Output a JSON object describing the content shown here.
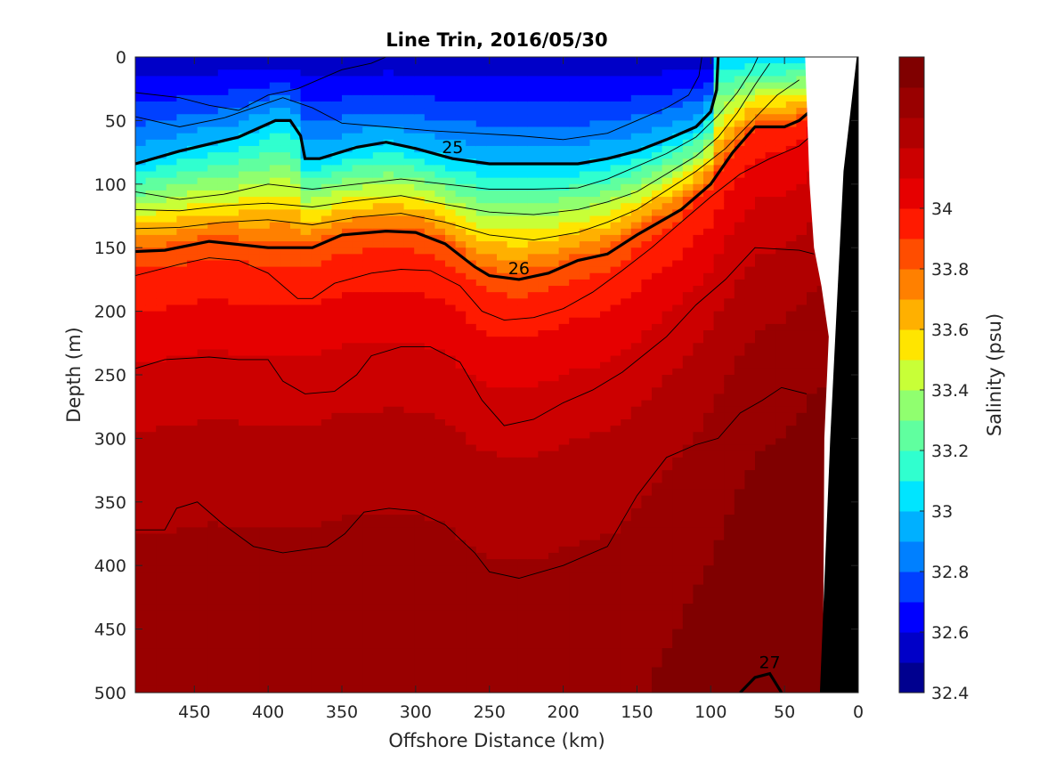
{
  "chart_data": {
    "type": "heatmap",
    "title": "Line Trin, 2016/05/30",
    "xlabel": "Offshore Distance (km)",
    "ylabel": "Depth (m)",
    "xlim": [
      490,
      0
    ],
    "ylim": [
      0,
      500
    ],
    "x_ticks": [
      "450",
      "400",
      "350",
      "300",
      "250",
      "200",
      "150",
      "100",
      "50",
      "0"
    ],
    "y_ticks": [
      "0",
      "50",
      "100",
      "150",
      "200",
      "250",
      "300",
      "350",
      "400",
      "450",
      "500"
    ],
    "colorbar": {
      "label": "Salinity (psu)",
      "range": [
        32.4,
        34.5
      ],
      "ticks": [
        "32.4",
        "32.6",
        "32.8",
        "33",
        "33.2",
        "33.4",
        "33.6",
        "33.8",
        "34"
      ],
      "levels": [
        32.4,
        32.5,
        32.6,
        32.7,
        32.8,
        32.9,
        33.0,
        33.1,
        33.2,
        33.3,
        33.4,
        33.5,
        33.6,
        33.7,
        33.8,
        33.9,
        34.0,
        34.1,
        34.2,
        34.3,
        34.4,
        34.5
      ],
      "colors": [
        "#00008f",
        "#0000c8",
        "#0000ff",
        "#0040ff",
        "#0080ff",
        "#00b0ff",
        "#00e5ff",
        "#30ffcf",
        "#60ff9f",
        "#90ff6f",
        "#c8ff37",
        "#ffe500",
        "#ffb000",
        "#ff8000",
        "#ff4d00",
        "#ff1a00",
        "#e60000",
        "#cc0000",
        "#b00000",
        "#990000",
        "#800000"
      ]
    },
    "sigma_contours": [
      {
        "label": "25",
        "bold": true,
        "points": [
          [
            490,
            84
          ],
          [
            460,
            74
          ],
          [
            420,
            63
          ],
          [
            395,
            50
          ],
          [
            385,
            50
          ],
          [
            378,
            62
          ],
          [
            375,
            80
          ],
          [
            365,
            80
          ],
          [
            340,
            71
          ],
          [
            320,
            67
          ],
          [
            300,
            72
          ],
          [
            275,
            80
          ],
          [
            250,
            84
          ],
          [
            220,
            84
          ],
          [
            190,
            84
          ],
          [
            170,
            80
          ],
          [
            150,
            74
          ],
          [
            130,
            65
          ],
          [
            110,
            55
          ],
          [
            100,
            43
          ],
          [
            96,
            26
          ],
          [
            95,
            0
          ]
        ]
      },
      {
        "label": "26",
        "bold": true,
        "points": [
          [
            490,
            153
          ],
          [
            470,
            152
          ],
          [
            440,
            145
          ],
          [
            400,
            150
          ],
          [
            370,
            150
          ],
          [
            350,
            140
          ],
          [
            320,
            137
          ],
          [
            300,
            138
          ],
          [
            280,
            147
          ],
          [
            260,
            165
          ],
          [
            250,
            172
          ],
          [
            230,
            175
          ],
          [
            210,
            170
          ],
          [
            190,
            160
          ],
          [
            170,
            155
          ],
          [
            150,
            140
          ],
          [
            120,
            120
          ],
          [
            100,
            100
          ],
          [
            85,
            75
          ],
          [
            70,
            55
          ],
          [
            50,
            55
          ],
          [
            40,
            50
          ],
          [
            25,
            35
          ]
        ]
      },
      {
        "label": "27",
        "bold": true,
        "points": [
          [
            80,
            500
          ],
          [
            70,
            488
          ],
          [
            60,
            485
          ],
          [
            52,
            500
          ]
        ]
      },
      {
        "label": "",
        "bold": false,
        "points": [
          [
            490,
            28
          ],
          [
            460,
            32
          ],
          [
            440,
            38
          ],
          [
            420,
            42
          ],
          [
            400,
            30
          ],
          [
            380,
            25
          ],
          [
            350,
            10
          ],
          [
            330,
            5
          ],
          [
            320,
            0
          ]
        ]
      },
      {
        "label": "",
        "bold": false,
        "points": [
          [
            490,
            47
          ],
          [
            460,
            55
          ],
          [
            430,
            48
          ],
          [
            410,
            40
          ],
          [
            390,
            32
          ],
          [
            370,
            40
          ],
          [
            350,
            52
          ],
          [
            320,
            55
          ],
          [
            290,
            58
          ],
          [
            260,
            60
          ],
          [
            230,
            62
          ],
          [
            200,
            65
          ],
          [
            170,
            60
          ],
          [
            150,
            50
          ],
          [
            130,
            40
          ],
          [
            115,
            30
          ],
          [
            108,
            15
          ],
          [
            106,
            0
          ]
        ]
      },
      {
        "label": "",
        "bold": false,
        "points": [
          [
            490,
            106
          ],
          [
            460,
            112
          ],
          [
            430,
            108
          ],
          [
            400,
            100
          ],
          [
            370,
            104
          ],
          [
            340,
            100
          ],
          [
            310,
            96
          ],
          [
            280,
            100
          ],
          [
            250,
            104
          ],
          [
            220,
            104
          ],
          [
            190,
            103
          ],
          [
            170,
            96
          ],
          [
            150,
            86
          ],
          [
            130,
            76
          ],
          [
            110,
            63
          ],
          [
            95,
            46
          ],
          [
            82,
            28
          ],
          [
            72,
            10
          ],
          [
            68,
            0
          ]
        ]
      },
      {
        "label": "",
        "bold": false,
        "points": [
          [
            490,
            120
          ],
          [
            460,
            121
          ],
          [
            430,
            117
          ],
          [
            400,
            115
          ],
          [
            370,
            118
          ],
          [
            340,
            113
          ],
          [
            310,
            109
          ],
          [
            280,
            116
          ],
          [
            250,
            122
          ],
          [
            220,
            124
          ],
          [
            190,
            120
          ],
          [
            170,
            114
          ],
          [
            150,
            106
          ],
          [
            130,
            92
          ],
          [
            110,
            78
          ],
          [
            95,
            63
          ],
          [
            82,
            44
          ],
          [
            70,
            22
          ],
          [
            60,
            5
          ]
        ]
      },
      {
        "label": "",
        "bold": false,
        "points": [
          [
            490,
            135
          ],
          [
            460,
            134
          ],
          [
            430,
            130
          ],
          [
            400,
            128
          ],
          [
            370,
            132
          ],
          [
            340,
            126
          ],
          [
            310,
            123
          ],
          [
            280,
            130
          ],
          [
            250,
            140
          ],
          [
            220,
            144
          ],
          [
            190,
            138
          ],
          [
            170,
            130
          ],
          [
            150,
            120
          ],
          [
            130,
            105
          ],
          [
            110,
            90
          ],
          [
            90,
            72
          ],
          [
            70,
            48
          ],
          [
            55,
            30
          ],
          [
            40,
            18
          ]
        ]
      },
      {
        "label": "",
        "bold": false,
        "points": [
          [
            490,
            172
          ],
          [
            460,
            163
          ],
          [
            440,
            158
          ],
          [
            420,
            160
          ],
          [
            400,
            170
          ],
          [
            380,
            190
          ],
          [
            370,
            190
          ],
          [
            355,
            178
          ],
          [
            330,
            170
          ],
          [
            310,
            167
          ],
          [
            290,
            168
          ],
          [
            270,
            180
          ],
          [
            255,
            200
          ],
          [
            240,
            207
          ],
          [
            220,
            205
          ],
          [
            200,
            198
          ],
          [
            180,
            185
          ],
          [
            160,
            168
          ],
          [
            140,
            150
          ],
          [
            120,
            130
          ],
          [
            100,
            110
          ],
          [
            80,
            92
          ],
          [
            60,
            80
          ],
          [
            40,
            70
          ],
          [
            25,
            55
          ]
        ]
      },
      {
        "label": "",
        "bold": false,
        "points": [
          [
            490,
            245
          ],
          [
            470,
            238
          ],
          [
            440,
            236
          ],
          [
            420,
            238
          ],
          [
            400,
            238
          ],
          [
            390,
            255
          ],
          [
            375,
            265
          ],
          [
            355,
            263
          ],
          [
            340,
            250
          ],
          [
            330,
            235
          ],
          [
            310,
            228
          ],
          [
            290,
            228
          ],
          [
            270,
            240
          ],
          [
            255,
            270
          ],
          [
            240,
            290
          ],
          [
            220,
            285
          ],
          [
            200,
            272
          ],
          [
            180,
            262
          ],
          [
            160,
            248
          ],
          [
            130,
            220
          ],
          [
            110,
            195
          ],
          [
            90,
            175
          ],
          [
            70,
            150
          ],
          [
            40,
            152
          ],
          [
            30,
            155
          ]
        ]
      },
      {
        "label": "",
        "bold": false,
        "points": [
          [
            490,
            372
          ],
          [
            470,
            372
          ],
          [
            462,
            355
          ],
          [
            448,
            350
          ],
          [
            430,
            368
          ],
          [
            410,
            385
          ],
          [
            390,
            390
          ],
          [
            360,
            385
          ],
          [
            348,
            375
          ],
          [
            335,
            358
          ],
          [
            318,
            355
          ],
          [
            300,
            357
          ],
          [
            280,
            368
          ],
          [
            260,
            390
          ],
          [
            250,
            405
          ],
          [
            230,
            410
          ],
          [
            200,
            400
          ],
          [
            170,
            385
          ],
          [
            150,
            345
          ],
          [
            130,
            315
          ],
          [
            110,
            305
          ],
          [
            95,
            300
          ],
          [
            80,
            280
          ],
          [
            65,
            270
          ],
          [
            52,
            260
          ],
          [
            35,
            265
          ]
        ]
      }
    ]
  }
}
